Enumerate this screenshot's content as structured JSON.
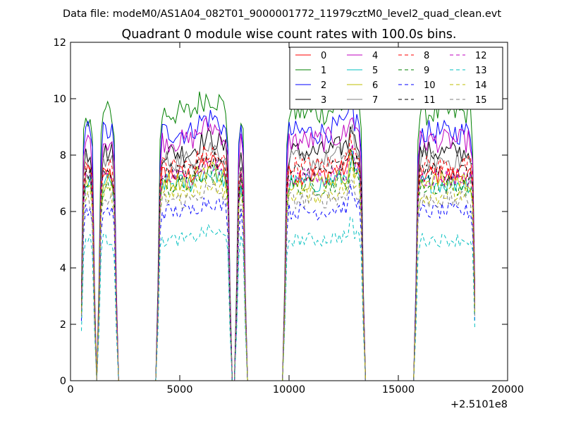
{
  "chart_data": {
    "type": "line",
    "suptitle": "Data file: modeM0/AS1A04_082T01_9000001772_11979cztM0_level2_quad_clean.evt",
    "title": "Quadrant 0 module wise count rates with 100.0s bins.",
    "xlabel": "",
    "ylabel": "",
    "x_offset_label": "+2.5101e8",
    "xlim": [
      0,
      20000
    ],
    "ylim": [
      0,
      12
    ],
    "x_ticks": [
      0,
      5000,
      10000,
      15000,
      20000
    ],
    "y_ticks": [
      0,
      2,
      4,
      6,
      8,
      10,
      12
    ],
    "x_tick_labels": [
      "0",
      "5000",
      "10000",
      "15000",
      "20000"
    ],
    "y_tick_labels": [
      "0",
      "2",
      "4",
      "6",
      "8",
      "10",
      "12"
    ],
    "grid": false,
    "legend_position": "top-right",
    "bin_size_s": 100,
    "x_range": [
      500,
      18500
    ],
    "active_intervals": [
      [
        500,
        1100
      ],
      [
        1300,
        2100
      ],
      [
        4000,
        7300
      ],
      [
        7600,
        8000
      ],
      [
        9800,
        13400
      ],
      [
        15800,
        18500
      ]
    ],
    "series": [
      {
        "name": "0",
        "color": "#ff0000",
        "style": "solid",
        "level": 7.3
      },
      {
        "name": "1",
        "color": "#008000",
        "style": "solid",
        "level": 9.5
      },
      {
        "name": "2",
        "color": "#0000ff",
        "style": "solid",
        "level": 8.8
      },
      {
        "name": "3",
        "color": "#000000",
        "style": "solid",
        "level": 8.1
      },
      {
        "name": "4",
        "color": "#bf00bf",
        "style": "solid",
        "level": 8.5
      },
      {
        "name": "5",
        "color": "#00bfbf",
        "style": "solid",
        "level": 7.0
      },
      {
        "name": "6",
        "color": "#bfbf00",
        "style": "solid",
        "level": 7.1
      },
      {
        "name": "7",
        "color": "#808080",
        "style": "solid",
        "level": 7.8
      },
      {
        "name": "8",
        "color": "#ff0000",
        "style": "dashed",
        "level": 7.6
      },
      {
        "name": "9",
        "color": "#008000",
        "style": "dashed",
        "level": 6.9
      },
      {
        "name": "10",
        "color": "#0000ff",
        "style": "dashed",
        "level": 6.0
      },
      {
        "name": "11",
        "color": "#000000",
        "style": "dashed",
        "level": 7.4
      },
      {
        "name": "12",
        "color": "#bf00bf",
        "style": "dashed",
        "level": 7.2
      },
      {
        "name": "13",
        "color": "#00bfbf",
        "style": "dashed",
        "level": 5.0
      },
      {
        "name": "14",
        "color": "#bfbf00",
        "style": "dashed",
        "level": 6.6
      },
      {
        "name": "15",
        "color": "#808080",
        "style": "dashed",
        "level": 6.4
      }
    ]
  }
}
